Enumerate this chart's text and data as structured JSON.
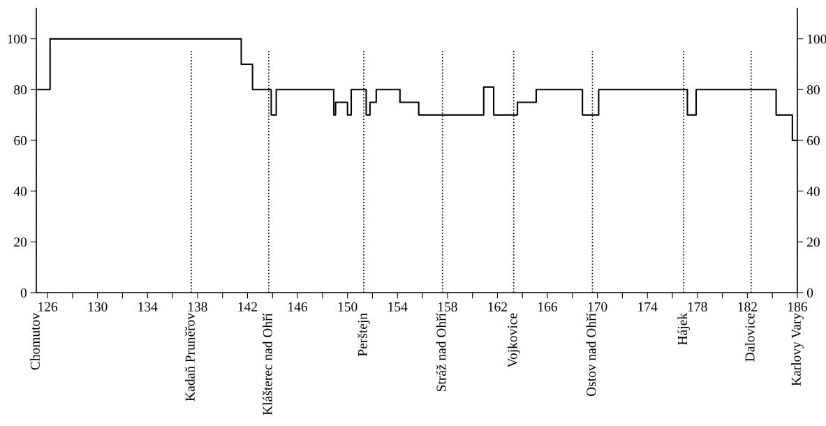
{
  "chart_data": {
    "type": "step",
    "line_style": "solid",
    "marker": "none",
    "grid": false,
    "legend": false,
    "x": [
      125.1,
      126.2,
      141.5,
      142.4,
      143.9,
      144.3,
      148.9,
      149.05,
      150.0,
      150.3,
      151.5,
      151.8,
      152.3,
      154.2,
      155.7,
      160.9,
      161.7,
      163.6,
      165.1,
      168.8,
      170.1,
      177.2,
      177.9,
      184.3,
      185.6,
      186
    ],
    "series": [
      {
        "color": "#000000",
        "values": [
          80,
          100,
          90,
          80,
          70,
          80,
          70,
          75,
          70,
          80,
          70,
          75,
          80,
          75,
          70,
          81,
          70,
          75,
          80,
          70,
          80,
          70,
          80,
          70,
          60,
          60
        ]
      }
    ],
    "xlim": [
      125.1,
      186
    ],
    "xticks": [
      126,
      {
        "value": 128,
        "label": null
      },
      130,
      {
        "value": 132,
        "label": null
      },
      134,
      {
        "value": 136,
        "label": null
      },
      138,
      {
        "value": 140,
        "label": null
      },
      142,
      {
        "value": 144,
        "label": null
      },
      146,
      {
        "value": 148,
        "label": null
      },
      150,
      {
        "value": 152,
        "label": null
      },
      154,
      {
        "value": 156,
        "label": null
      },
      158,
      {
        "value": 160,
        "label": null
      },
      162,
      {
        "value": 164,
        "label": null
      },
      166,
      {
        "value": 168,
        "label": null
      },
      170,
      {
        "value": 172,
        "label": null
      },
      174,
      {
        "value": 176,
        "label": null
      },
      178,
      {
        "value": 180,
        "label": null
      },
      182,
      {
        "value": 184,
        "label": null
      },
      186
    ],
    "ylim": [
      0,
      112
    ],
    "yticks": [
      0,
      20,
      40,
      60,
      80,
      100
    ],
    "y2lim": [
      0,
      112
    ],
    "y2ticks": [
      0,
      20,
      40,
      60,
      80,
      100
    ],
    "ref_lines": [
      {
        "axis": "x",
        "value": 125.1,
        "label": "Chomutov",
        "line_style": "dotted",
        "color": "#000000"
      },
      {
        "axis": "x",
        "value": 137.5,
        "label": "Kadaň Pruněřov",
        "line_style": "dotted",
        "color": "#000000"
      },
      {
        "axis": "x",
        "value": 143.7,
        "label": "Klášterec nad Ohří",
        "line_style": "dotted",
        "color": "#000000"
      },
      {
        "axis": "x",
        "value": 151.3,
        "label": "Perštejn",
        "line_style": "dotted",
        "color": "#000000"
      },
      {
        "axis": "x",
        "value": 157.6,
        "label": "Stráž nad Ohří",
        "line_style": "dotted",
        "color": "#000000"
      },
      {
        "axis": "x",
        "value": 163.3,
        "label": "Vojkovice",
        "line_style": "dotted",
        "color": "#000000"
      },
      {
        "axis": "x",
        "value": 169.6,
        "label": "Ostov nad Ohří",
        "line_style": "dotted",
        "color": "#000000"
      },
      {
        "axis": "x",
        "value": 176.9,
        "label": "Hájek",
        "line_style": "dotted",
        "color": "#000000"
      },
      {
        "axis": "x",
        "value": 182.3,
        "label": "Dalovice",
        "line_style": "dotted",
        "color": "#000000"
      },
      {
        "axis": "x",
        "value": 186,
        "label": "Karlovy Vary",
        "line_style": "dotted",
        "color": "#000000"
      }
    ]
  }
}
